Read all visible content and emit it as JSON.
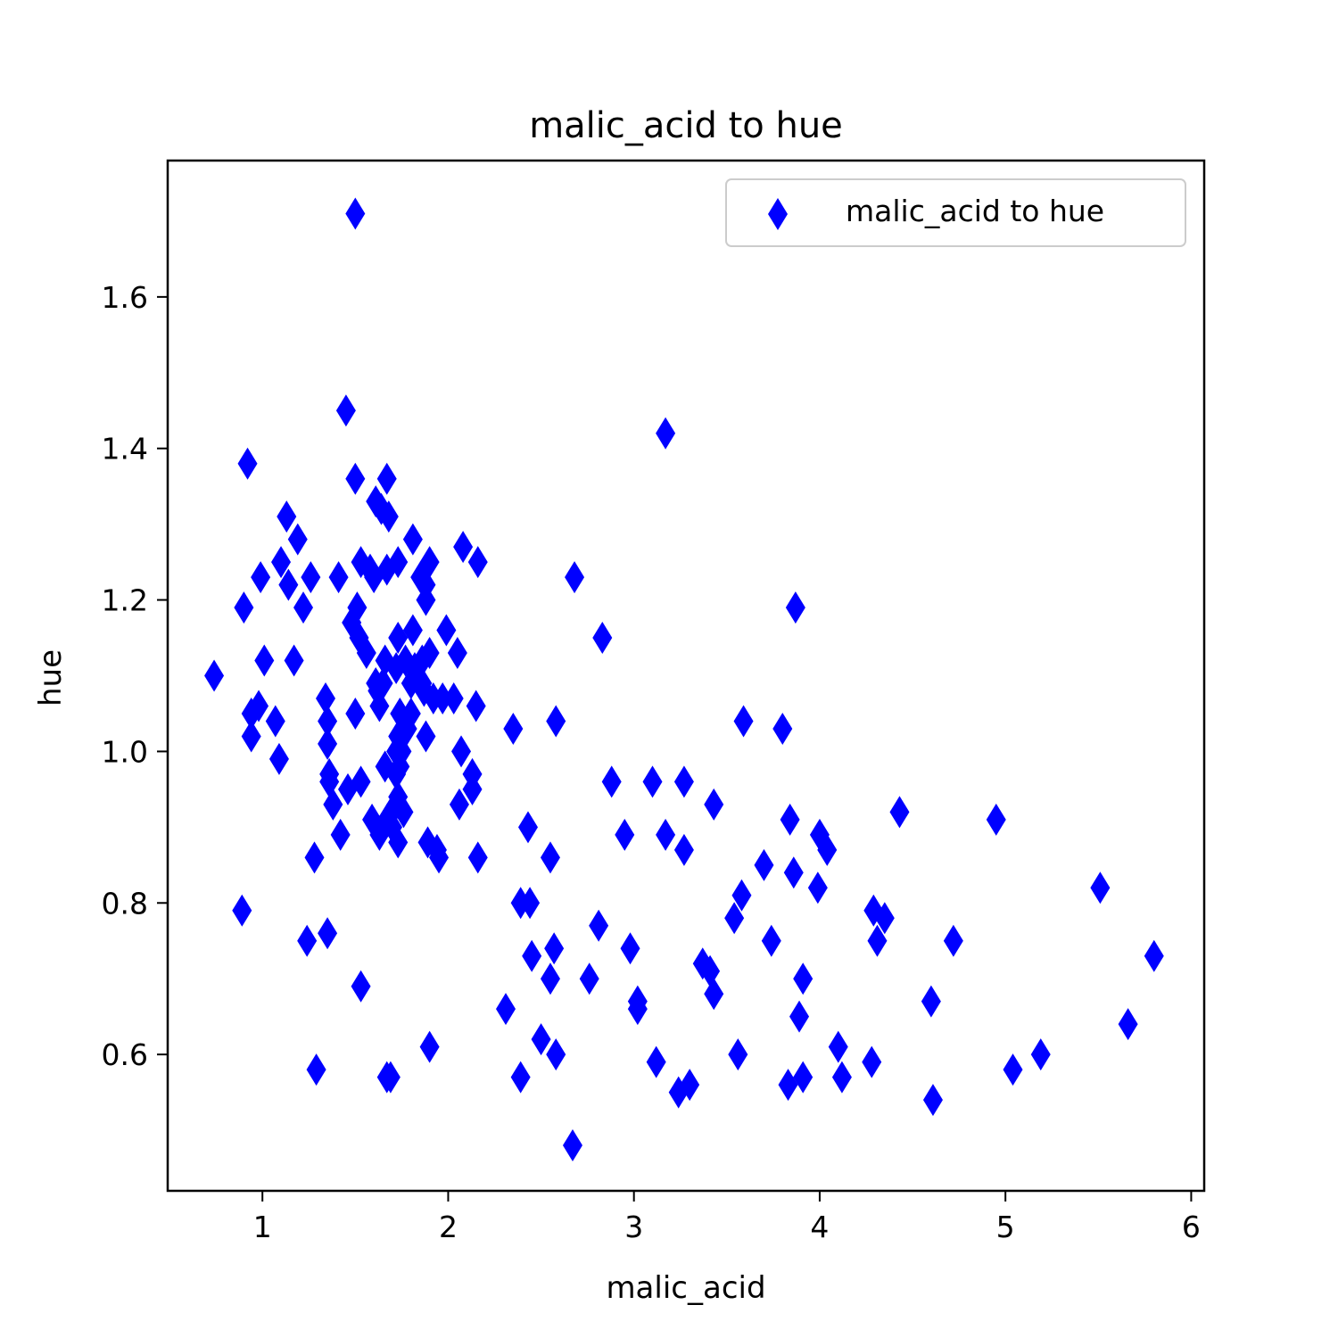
{
  "chart_data": {
    "type": "scatter",
    "title": "malic_acid to hue",
    "xlabel": "malic_acid",
    "ylabel": "hue",
    "xlim": [
      0.49,
      6.07
    ],
    "ylim": [
      0.42,
      1.78
    ],
    "xticks": [
      1,
      2,
      3,
      4,
      5,
      6
    ],
    "yticks": [
      0.6,
      0.8,
      1.0,
      1.2,
      1.4,
      1.6
    ],
    "xtick_labels": [
      "1",
      "2",
      "3",
      "4",
      "5",
      "6"
    ],
    "ytick_labels": [
      "0.6",
      "0.8",
      "1.0",
      "1.2",
      "1.4",
      "1.6"
    ],
    "grid": false,
    "legend_position": "top-right",
    "series": [
      {
        "name": "malic_acid to hue",
        "color": "#0000ff",
        "marker": "thin-diamond",
        "points": [
          [
            1.5,
            1.71
          ],
          [
            1.45,
            1.45
          ],
          [
            3.17,
            1.42
          ],
          [
            0.92,
            1.38
          ],
          [
            1.5,
            1.36
          ],
          [
            1.67,
            1.36
          ],
          [
            1.61,
            1.33
          ],
          [
            1.64,
            1.32
          ],
          [
            1.68,
            1.31
          ],
          [
            1.13,
            1.31
          ],
          [
            1.19,
            1.28
          ],
          [
            1.81,
            1.28
          ],
          [
            2.08,
            1.27
          ],
          [
            1.1,
            1.25
          ],
          [
            1.53,
            1.25
          ],
          [
            1.73,
            1.25
          ],
          [
            1.9,
            1.25
          ],
          [
            2.16,
            1.25
          ],
          [
            1.58,
            1.24
          ],
          [
            1.67,
            1.24
          ],
          [
            0.99,
            1.23
          ],
          [
            1.26,
            1.23
          ],
          [
            1.41,
            1.23
          ],
          [
            1.6,
            1.23
          ],
          [
            1.85,
            1.23
          ],
          [
            2.68,
            1.23
          ],
          [
            1.14,
            1.22
          ],
          [
            1.88,
            1.22
          ],
          [
            1.88,
            1.2
          ],
          [
            1.51,
            1.19
          ],
          [
            0.9,
            1.19
          ],
          [
            1.22,
            1.19
          ],
          [
            3.87,
            1.19
          ],
          [
            1.48,
            1.17
          ],
          [
            1.81,
            1.16
          ],
          [
            1.99,
            1.16
          ],
          [
            1.52,
            1.15
          ],
          [
            2.83,
            1.15
          ],
          [
            1.73,
            1.15
          ],
          [
            1.56,
            1.13
          ],
          [
            1.9,
            1.13
          ],
          [
            2.05,
            1.13
          ],
          [
            1.01,
            1.12
          ],
          [
            1.17,
            1.12
          ],
          [
            1.66,
            1.12
          ],
          [
            1.77,
            1.12
          ],
          [
            1.86,
            1.12
          ],
          [
            1.72,
            1.11
          ],
          [
            1.82,
            1.11
          ],
          [
            0.74,
            1.1
          ],
          [
            1.61,
            1.09
          ],
          [
            1.65,
            1.09
          ],
          [
            1.8,
            1.09
          ],
          [
            1.86,
            1.09
          ],
          [
            1.62,
            1.08
          ],
          [
            1.87,
            1.08
          ],
          [
            1.34,
            1.07
          ],
          [
            1.92,
            1.07
          ],
          [
            1.97,
            1.07
          ],
          [
            2.03,
            1.07
          ],
          [
            0.98,
            1.06
          ],
          [
            1.63,
            1.06
          ],
          [
            2.15,
            1.06
          ],
          [
            0.94,
            1.05
          ],
          [
            1.5,
            1.05
          ],
          [
            1.74,
            1.05
          ],
          [
            1.8,
            1.05
          ],
          [
            1.07,
            1.04
          ],
          [
            1.35,
            1.04
          ],
          [
            2.58,
            1.04
          ],
          [
            3.59,
            1.04
          ],
          [
            1.78,
            1.03
          ],
          [
            2.35,
            1.03
          ],
          [
            3.8,
            1.03
          ],
          [
            0.94,
            1.02
          ],
          [
            1.73,
            1.02
          ],
          [
            1.88,
            1.02
          ],
          [
            1.35,
            1.01
          ],
          [
            1.72,
            1.0
          ],
          [
            1.75,
            1.0
          ],
          [
            2.07,
            1.0
          ],
          [
            1.09,
            0.99
          ],
          [
            1.66,
            0.98
          ],
          [
            1.74,
            0.98
          ],
          [
            1.36,
            0.97
          ],
          [
            1.72,
            0.97
          ],
          [
            2.13,
            0.97
          ],
          [
            1.36,
            0.96
          ],
          [
            1.53,
            0.96
          ],
          [
            2.88,
            0.96
          ],
          [
            3.1,
            0.96
          ],
          [
            3.27,
            0.96
          ],
          [
            1.46,
            0.95
          ],
          [
            2.13,
            0.95
          ],
          [
            1.73,
            0.94
          ],
          [
            1.38,
            0.93
          ],
          [
            1.72,
            0.93
          ],
          [
            2.06,
            0.93
          ],
          [
            3.43,
            0.93
          ],
          [
            1.76,
            0.92
          ],
          [
            4.43,
            0.92
          ],
          [
            1.59,
            0.91
          ],
          [
            1.67,
            0.91
          ],
          [
            3.84,
            0.91
          ],
          [
            4.95,
            0.91
          ],
          [
            1.7,
            0.9
          ],
          [
            2.43,
            0.9
          ],
          [
            1.42,
            0.89
          ],
          [
            1.63,
            0.89
          ],
          [
            2.95,
            0.89
          ],
          [
            3.17,
            0.89
          ],
          [
            4.0,
            0.89
          ],
          [
            1.73,
            0.88
          ],
          [
            1.89,
            0.88
          ],
          [
            1.94,
            0.87
          ],
          [
            3.27,
            0.87
          ],
          [
            4.04,
            0.87
          ],
          [
            1.28,
            0.86
          ],
          [
            1.95,
            0.86
          ],
          [
            2.16,
            0.86
          ],
          [
            2.55,
            0.86
          ],
          [
            3.7,
            0.85
          ],
          [
            3.86,
            0.84
          ],
          [
            3.58,
            0.81
          ],
          [
            3.99,
            0.82
          ],
          [
            5.51,
            0.82
          ],
          [
            2.39,
            0.8
          ],
          [
            2.44,
            0.8
          ],
          [
            0.89,
            0.79
          ],
          [
            4.29,
            0.79
          ],
          [
            3.54,
            0.78
          ],
          [
            4.35,
            0.78
          ],
          [
            2.81,
            0.77
          ],
          [
            1.35,
            0.76
          ],
          [
            1.24,
            0.75
          ],
          [
            3.74,
            0.75
          ],
          [
            4.31,
            0.75
          ],
          [
            4.72,
            0.75
          ],
          [
            2.57,
            0.74
          ],
          [
            2.98,
            0.74
          ],
          [
            2.45,
            0.73
          ],
          [
            5.8,
            0.73
          ],
          [
            3.37,
            0.72
          ],
          [
            3.41,
            0.71
          ],
          [
            2.55,
            0.7
          ],
          [
            2.76,
            0.7
          ],
          [
            3.91,
            0.7
          ],
          [
            3.43,
            0.68
          ],
          [
            1.53,
            0.69
          ],
          [
            3.02,
            0.67
          ],
          [
            4.6,
            0.67
          ],
          [
            2.31,
            0.66
          ],
          [
            3.02,
            0.66
          ],
          [
            3.89,
            0.65
          ],
          [
            5.66,
            0.64
          ],
          [
            2.5,
            0.62
          ],
          [
            4.1,
            0.61
          ],
          [
            1.9,
            0.61
          ],
          [
            2.58,
            0.6
          ],
          [
            3.56,
            0.6
          ],
          [
            5.19,
            0.6
          ],
          [
            3.12,
            0.59
          ],
          [
            4.28,
            0.59
          ],
          [
            1.29,
            0.58
          ],
          [
            5.04,
            0.58
          ],
          [
            1.67,
            0.57
          ],
          [
            1.69,
            0.57
          ],
          [
            2.39,
            0.57
          ],
          [
            3.91,
            0.57
          ],
          [
            4.12,
            0.57
          ],
          [
            3.3,
            0.56
          ],
          [
            3.83,
            0.56
          ],
          [
            3.24,
            0.55
          ],
          [
            4.61,
            0.54
          ],
          [
            2.67,
            0.48
          ]
        ]
      }
    ]
  }
}
